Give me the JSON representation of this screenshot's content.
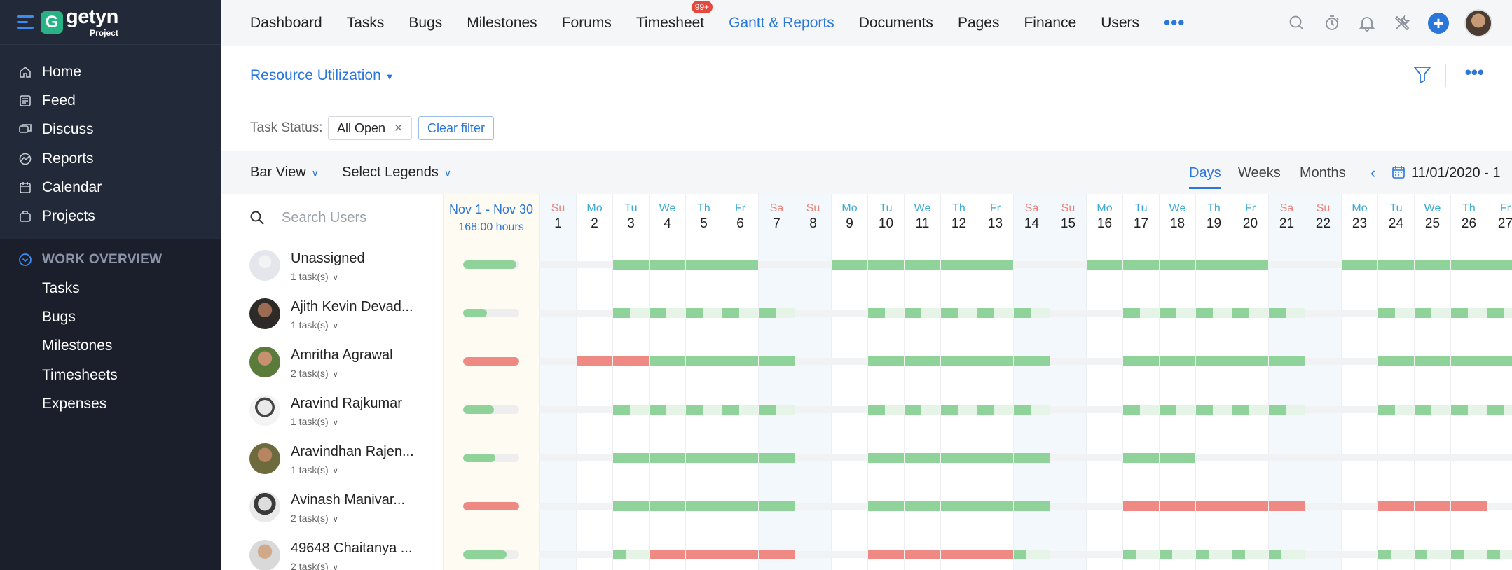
{
  "app": {
    "name": "getyn",
    "sub": "Project"
  },
  "sidebar": {
    "items": [
      {
        "label": "Home",
        "icon": "home-icon"
      },
      {
        "label": "Feed",
        "icon": "feed-icon"
      },
      {
        "label": "Discuss",
        "icon": "discuss-icon"
      },
      {
        "label": "Reports",
        "icon": "reports-icon"
      },
      {
        "label": "Calendar",
        "icon": "calendar-icon"
      },
      {
        "label": "Projects",
        "icon": "projects-icon"
      }
    ],
    "work_overview": {
      "heading": "WORK OVERVIEW",
      "items": [
        "Tasks",
        "Bugs",
        "Milestones",
        "Timesheets",
        "Expenses"
      ]
    }
  },
  "topnav": {
    "items": [
      "Dashboard",
      "Tasks",
      "Bugs",
      "Milestones",
      "Forums",
      "Timesheet",
      "Gantt & Reports",
      "Documents",
      "Pages",
      "Finance",
      "Users"
    ],
    "active": "Gantt & Reports",
    "timesheet_badge": "99+",
    "more": "•••"
  },
  "header": {
    "title": "Resource Utilization",
    "more": "•••"
  },
  "filters": {
    "label": "Task Status:",
    "chip": "All Open",
    "clear": "Clear filter"
  },
  "toolbar": {
    "view": "Bar View",
    "legends": "Select Legends",
    "tabs": [
      "Days",
      "Weeks",
      "Months"
    ],
    "active_tab": "Days",
    "date": "11/01/2020  -  1"
  },
  "grid": {
    "search_placeholder": "Search Users",
    "range": "Nov 1 - Nov 30",
    "hours": "168:00 hours",
    "days": [
      {
        "dn": "Su",
        "d": "1"
      },
      {
        "dn": "Mo",
        "d": "2"
      },
      {
        "dn": "Tu",
        "d": "3"
      },
      {
        "dn": "We",
        "d": "4"
      },
      {
        "dn": "Th",
        "d": "5"
      },
      {
        "dn": "Fr",
        "d": "6"
      },
      {
        "dn": "Sa",
        "d": "7"
      },
      {
        "dn": "Su",
        "d": "8"
      },
      {
        "dn": "Mo",
        "d": "9"
      },
      {
        "dn": "Tu",
        "d": "10"
      },
      {
        "dn": "We",
        "d": "11"
      },
      {
        "dn": "Th",
        "d": "12"
      },
      {
        "dn": "Fr",
        "d": "13"
      },
      {
        "dn": "Sa",
        "d": "14"
      },
      {
        "dn": "Su",
        "d": "15"
      },
      {
        "dn": "Mo",
        "d": "16"
      },
      {
        "dn": "Tu",
        "d": "17"
      },
      {
        "dn": "We",
        "d": "18"
      },
      {
        "dn": "Th",
        "d": "19"
      },
      {
        "dn": "Fr",
        "d": "20"
      },
      {
        "dn": "Sa",
        "d": "21"
      },
      {
        "dn": "Su",
        "d": "22"
      },
      {
        "dn": "Mo",
        "d": "23"
      },
      {
        "dn": "Tu",
        "d": "24"
      },
      {
        "dn": "We",
        "d": "25"
      },
      {
        "dn": "Th",
        "d": "26"
      },
      {
        "dn": "Fr",
        "d": "27"
      }
    ],
    "users": [
      {
        "name": "Unassigned",
        "tasks": "1 task(s)",
        "summary": "green",
        "summary_fill": 0.95,
        "days": [
          "",
          "",
          "g",
          "g",
          "g",
          "g",
          "",
          "",
          "g",
          "g",
          "g",
          "g",
          "g",
          "",
          "",
          "g",
          "g",
          "g",
          "g",
          "g",
          "",
          "",
          "g",
          "g",
          "g",
          "g",
          "g"
        ]
      },
      {
        "name": "Ajith Kevin Devad...",
        "tasks": "1 task(s)",
        "summary": "green",
        "summary_fill": 0.42,
        "days": [
          "",
          "",
          "p",
          "p",
          "p",
          "p",
          "p",
          "",
          "",
          "p",
          "p",
          "p",
          "p",
          "p",
          "",
          "",
          "p",
          "p",
          "p",
          "p",
          "p",
          "",
          "",
          "p",
          "p",
          "p",
          "p"
        ]
      },
      {
        "name": "Amritha Agrawal",
        "tasks": "2 task(s)",
        "summary": "red",
        "summary_fill": 1.0,
        "days": [
          "",
          "r",
          "r",
          "g",
          "g",
          "g",
          "g",
          "",
          "",
          "g",
          "g",
          "g",
          "g",
          "g",
          "",
          "",
          "g",
          "g",
          "g",
          "g",
          "g",
          "",
          "",
          "g",
          "g",
          "g",
          "g"
        ]
      },
      {
        "name": "Aravind Rajkumar",
        "tasks": "1 task(s)",
        "summary": "green",
        "summary_fill": 0.55,
        "days": [
          "",
          "",
          "p",
          "p",
          "p",
          "p",
          "p",
          "",
          "",
          "p",
          "p",
          "p",
          "p",
          "p",
          "",
          "",
          "p",
          "p",
          "p",
          "p",
          "p",
          "",
          "",
          "p",
          "p",
          "p",
          "p"
        ]
      },
      {
        "name": "Aravindhan Rajen...",
        "tasks": "1 task(s)",
        "summary": "green",
        "summary_fill": 0.58,
        "days": [
          "",
          "",
          "g",
          "g",
          "g",
          "g",
          "g",
          "",
          "",
          "g",
          "g",
          "g",
          "g",
          "g",
          "",
          "",
          "g",
          "g",
          "",
          "",
          "",
          "",
          "",
          "",
          "",
          "",
          ""
        ]
      },
      {
        "name": "Avinash Manivar...",
        "tasks": "2 task(s)",
        "summary": "red",
        "summary_fill": 1.0,
        "days": [
          "",
          "",
          "g",
          "g",
          "g",
          "g",
          "g",
          "",
          "",
          "g",
          "g",
          "g",
          "g",
          "g",
          "",
          "",
          "r",
          "r",
          "r",
          "r",
          "r",
          "",
          "",
          "r",
          "r",
          "r",
          "",
          ""
        ]
      },
      {
        "name": "49648 Chaitanya ...",
        "tasks": "2 task(s)",
        "summary": "green",
        "summary_fill": 0.78,
        "days": [
          "",
          "",
          "q",
          "r",
          "r",
          "r",
          "r",
          "",
          "",
          "r",
          "r",
          "r",
          "r",
          "q",
          "",
          "",
          "q",
          "q",
          "q",
          "q",
          "q",
          "",
          "",
          "q",
          "q",
          "q",
          "q"
        ]
      }
    ]
  },
  "colors": {
    "accent": "#2a76db",
    "green": "#90d39a",
    "red": "#ee8983",
    "sidebar": "#222a39"
  }
}
